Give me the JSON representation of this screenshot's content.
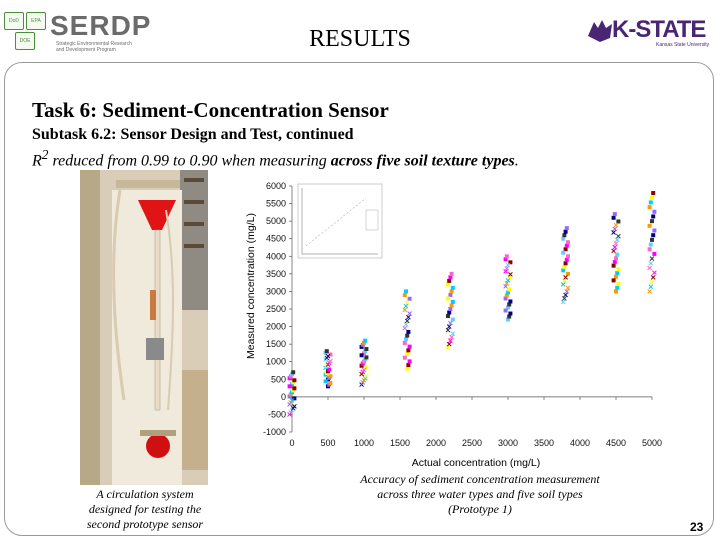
{
  "header": {
    "title": "RESULTS",
    "left_logo": {
      "word": "SERDP",
      "sub_line1": "Strategic Environmental Research",
      "sub_line2": "and Development Program",
      "badges": [
        "DoD",
        "EPA",
        "DOE"
      ]
    },
    "right_logo": {
      "word": "K-STATE",
      "sub": "Kansas State University",
      "color": "#4a2574"
    }
  },
  "content": {
    "task_title": "Task 6:  Sediment-Concentration Sensor",
    "subtask": "Subtask 6.2:  Sensor Design and Test, continued",
    "r2_prefix": "R",
    "r2_sup": "2",
    "r2_text": " reduced from 0.99 to 0.90 when measuring ",
    "r2_emph": "across five soil texture types",
    "r2_end": "."
  },
  "photo": {
    "caption_line1": "A circulation system",
    "caption_line2": "designed for testing the",
    "caption_line3": "second prototype sensor"
  },
  "chart_caption": {
    "line1": "Accuracy of sediment concentration measurement",
    "line2": "across three water types and five soil types",
    "line3": "(Prototype 1)"
  },
  "page_number": "23",
  "chart_data": {
    "type": "scatter",
    "xlabel": "Actual concentration (mg/L)",
    "ylabel": "Measured concentration (mg/L)",
    "xlim": [
      0,
      5000
    ],
    "ylim": [
      -1000,
      6000
    ],
    "x_ticks": [
      0,
      500,
      1000,
      1500,
      2000,
      2500,
      3000,
      3500,
      4000,
      4500,
      5000
    ],
    "y_ticks": [
      -1000,
      -500,
      0,
      500,
      1000,
      1500,
      2000,
      2500,
      3000,
      3500,
      4000,
      4500,
      5000,
      5500,
      6000
    ],
    "colors": [
      "#ff00ff",
      "#00ccff",
      "#000080",
      "#ff66cc",
      "#ffff00",
      "#9966ff",
      "#66ccff",
      "#8b0000",
      "#ff9900",
      "#333333"
    ],
    "groups": [
      {
        "x": 0,
        "y_min": -500,
        "y_max": 700
      },
      {
        "x": 500,
        "y_min": 300,
        "y_max": 1300
      },
      {
        "x": 1000,
        "y_min": 350,
        "y_max": 1600
      },
      {
        "x": 1600,
        "y_min": 800,
        "y_max": 3000
      },
      {
        "x": 2200,
        "y_min": 1400,
        "y_max": 3500
      },
      {
        "x": 3000,
        "y_min": 2200,
        "y_max": 4000
      },
      {
        "x": 3800,
        "y_min": 2700,
        "y_max": 4800
      },
      {
        "x": 4500,
        "y_min": 3000,
        "y_max": 5200
      },
      {
        "x": 5000,
        "y_min": 3000,
        "y_max": 5800
      }
    ]
  }
}
